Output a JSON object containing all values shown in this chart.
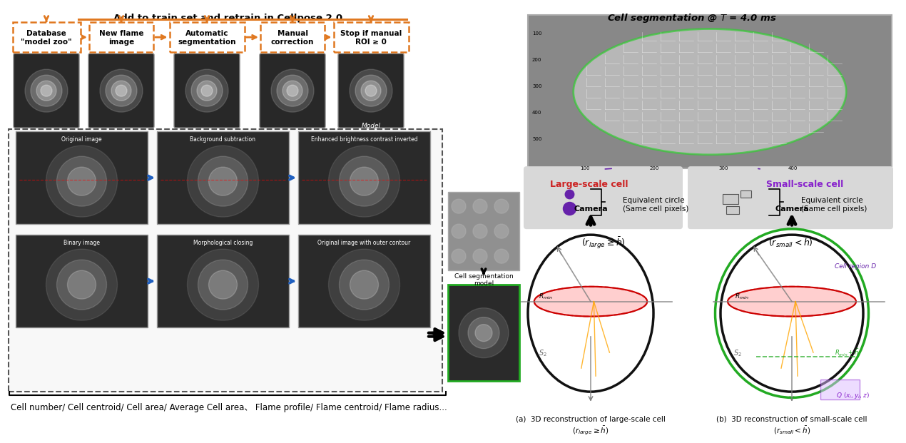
{
  "title_top": "Add to train set and retrain in Cellpose 2.0",
  "title_right": "Cell segmentation @ $T$ = 4.0 ms",
  "bottom_text": "Cell number/ Cell centroid/ Cell area/ Average Cell area、 Flame profile/ Flame centroid/ Flame radius...",
  "flow_boxes": [
    "Database\n\"model zoo\"",
    "New flame\nimage",
    "Automatic\nsegmentation",
    "Manual\ncorrection",
    "Stop if manual\nROI ≥ 0"
  ],
  "proc_row1": [
    "Original image",
    "Background subtraction",
    "Enhanced brightness contrast inverted"
  ],
  "proc_row2": [
    "Binary image",
    "Morphological closing",
    "Original image with outer contour"
  ],
  "large_cell_title": "Large-scale cell",
  "large_cell_sub": "Equivalent circle\n(Same cell pixels)",
  "large_cell_eq": "($r_{large} \\geq \\bar{h}$)",
  "small_cell_title": "Small-scale cell",
  "small_cell_sub": "Equivalent circle\n(Same cell pixels)",
  "small_cell_eq": "($r_{small}<\\bar{h}$)",
  "recon_a": "(a)  3D reconstruction of large-scale cell\n($r_{large} \\geq \\bar{h}$)",
  "recon_b": "(b)  3D reconstruction of small-scale cell\n($r_{small} < \\bar{h}$)",
  "cell_seg_model": "Cell segmentation\nmodel",
  "bg_color": "#ffffff",
  "orange_color": "#E07820",
  "blue_arrow_color": "#2060c0",
  "large_cell_box_color": "#cc2222",
  "small_cell_box_color": "#8822cc",
  "green_circle_color": "#22aa22",
  "black_circle_color": "#111111"
}
